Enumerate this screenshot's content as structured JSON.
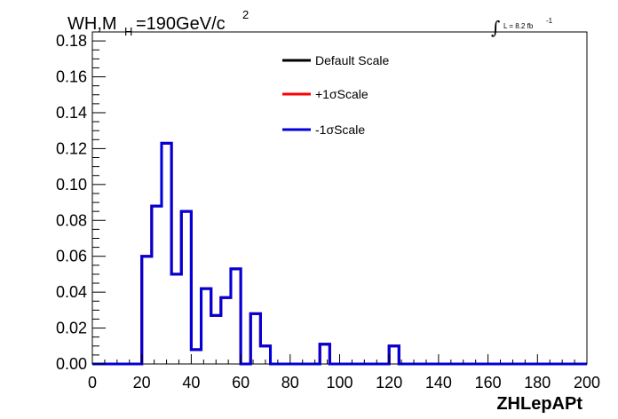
{
  "chart_data": {
    "type": "line",
    "step": true,
    "title": {
      "main": "WH,M",
      "sub": "H",
      "rest": "=190GeV/c",
      "sup": "2"
    },
    "lumi": {
      "integral": "∫",
      "text": "L = 8.2 fb",
      "sup": "-1"
    },
    "xlabel": "ZHLepAPt",
    "ylabel": "",
    "xlim": [
      0,
      200
    ],
    "ylim": [
      0,
      0.185
    ],
    "xticks": [
      0,
      20,
      40,
      60,
      80,
      100,
      120,
      140,
      160,
      180,
      200
    ],
    "xtick_labels": [
      "0",
      "20",
      "40",
      "60",
      "80",
      "100",
      "120",
      "140",
      "160",
      "180",
      "200"
    ],
    "yticks": [
      0,
      0.02,
      0.04,
      0.06,
      0.08,
      0.1,
      0.12,
      0.14,
      0.16,
      0.18
    ],
    "ytick_labels": [
      "0.00",
      "0.02",
      "0.04",
      "0.06",
      "0.08",
      "0.10",
      "0.12",
      "0.14",
      "0.16",
      "0.18"
    ],
    "bin_edges": [
      0,
      4,
      8,
      12,
      16,
      20,
      24,
      28,
      32,
      36,
      40,
      44,
      48,
      52,
      56,
      60,
      64,
      68,
      72,
      76,
      80,
      84,
      88,
      92,
      96,
      100,
      104,
      108,
      112,
      116,
      120,
      124,
      128,
      132,
      136,
      140,
      144,
      148,
      152,
      156,
      160,
      164,
      168,
      172,
      176,
      180,
      184,
      188,
      192,
      196,
      200
    ],
    "series": [
      {
        "name": "Default Scale",
        "color": "#000000",
        "values": [
          0,
          0,
          0,
          0,
          0,
          0.06,
          0.088,
          0.123,
          0.05,
          0.085,
          0.008,
          0.042,
          0.027,
          0.037,
          0.053,
          0,
          0.028,
          0.01,
          0,
          0,
          0,
          0,
          0,
          0.011,
          0,
          0,
          0,
          0,
          0,
          0,
          0.01,
          0,
          0,
          0,
          0,
          0,
          0,
          0,
          0,
          0,
          0,
          0,
          0,
          0,
          0,
          0,
          0,
          0,
          0,
          0
        ]
      },
      {
        "name": "+1σScale",
        "color": "#ff0000",
        "values": [
          0,
          0,
          0,
          0,
          0,
          0.06,
          0.088,
          0.123,
          0.05,
          0.085,
          0.008,
          0.042,
          0.027,
          0.037,
          0.053,
          0,
          0.028,
          0.01,
          0,
          0,
          0,
          0,
          0,
          0.011,
          0,
          0,
          0,
          0,
          0,
          0,
          0.01,
          0,
          0,
          0,
          0,
          0,
          0,
          0,
          0,
          0,
          0,
          0,
          0,
          0,
          0,
          0,
          0,
          0,
          0,
          0
        ]
      },
      {
        "name": "-1σScale",
        "color": "#0000dd",
        "values": [
          0,
          0,
          0,
          0,
          0,
          0.06,
          0.088,
          0.123,
          0.05,
          0.085,
          0.008,
          0.042,
          0.027,
          0.037,
          0.053,
          0,
          0.028,
          0.01,
          0,
          0,
          0,
          0,
          0,
          0.011,
          0,
          0,
          0,
          0,
          0,
          0,
          0.01,
          0,
          0,
          0,
          0,
          0,
          0,
          0,
          0,
          0,
          0,
          0,
          0,
          0,
          0,
          0,
          0,
          0,
          0,
          0
        ]
      }
    ],
    "legend_placement": "top-center",
    "grid": false
  }
}
